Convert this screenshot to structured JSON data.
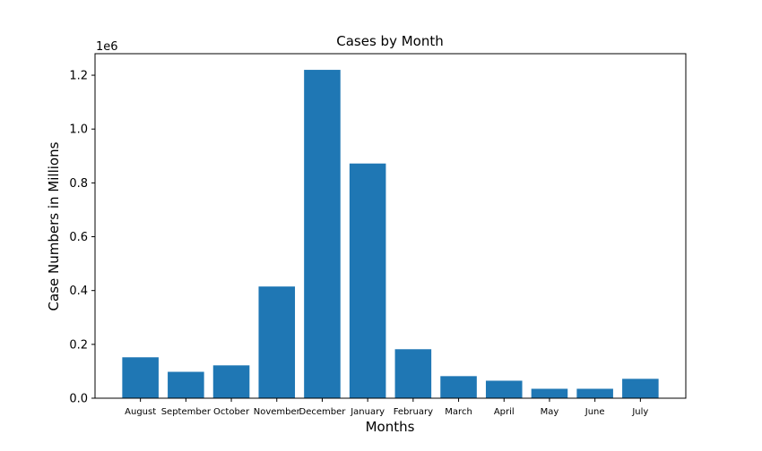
{
  "chart_data": {
    "type": "bar",
    "title": "Cases by Month",
    "xlabel": "Months",
    "ylabel": "Case Numbers in Millions",
    "offset_label": "1e6",
    "categories": [
      "August",
      "September",
      "October",
      "November",
      "December",
      "January",
      "February",
      "March",
      "April",
      "May",
      "June",
      "July"
    ],
    "values": [
      152000,
      98000,
      122000,
      415000,
      1220000,
      872000,
      182000,
      82000,
      65000,
      35000,
      35000,
      72000
    ],
    "ylim": [
      0,
      1280000
    ],
    "y_ticks": [
      0,
      200000,
      400000,
      600000,
      800000,
      1000000,
      1200000
    ],
    "y_tick_labels": [
      "0.0",
      "0.2",
      "0.4",
      "0.6",
      "0.8",
      "1.0",
      "1.2"
    ],
    "bar_color": "#1f77b4",
    "grid": false,
    "legend": "none"
  }
}
